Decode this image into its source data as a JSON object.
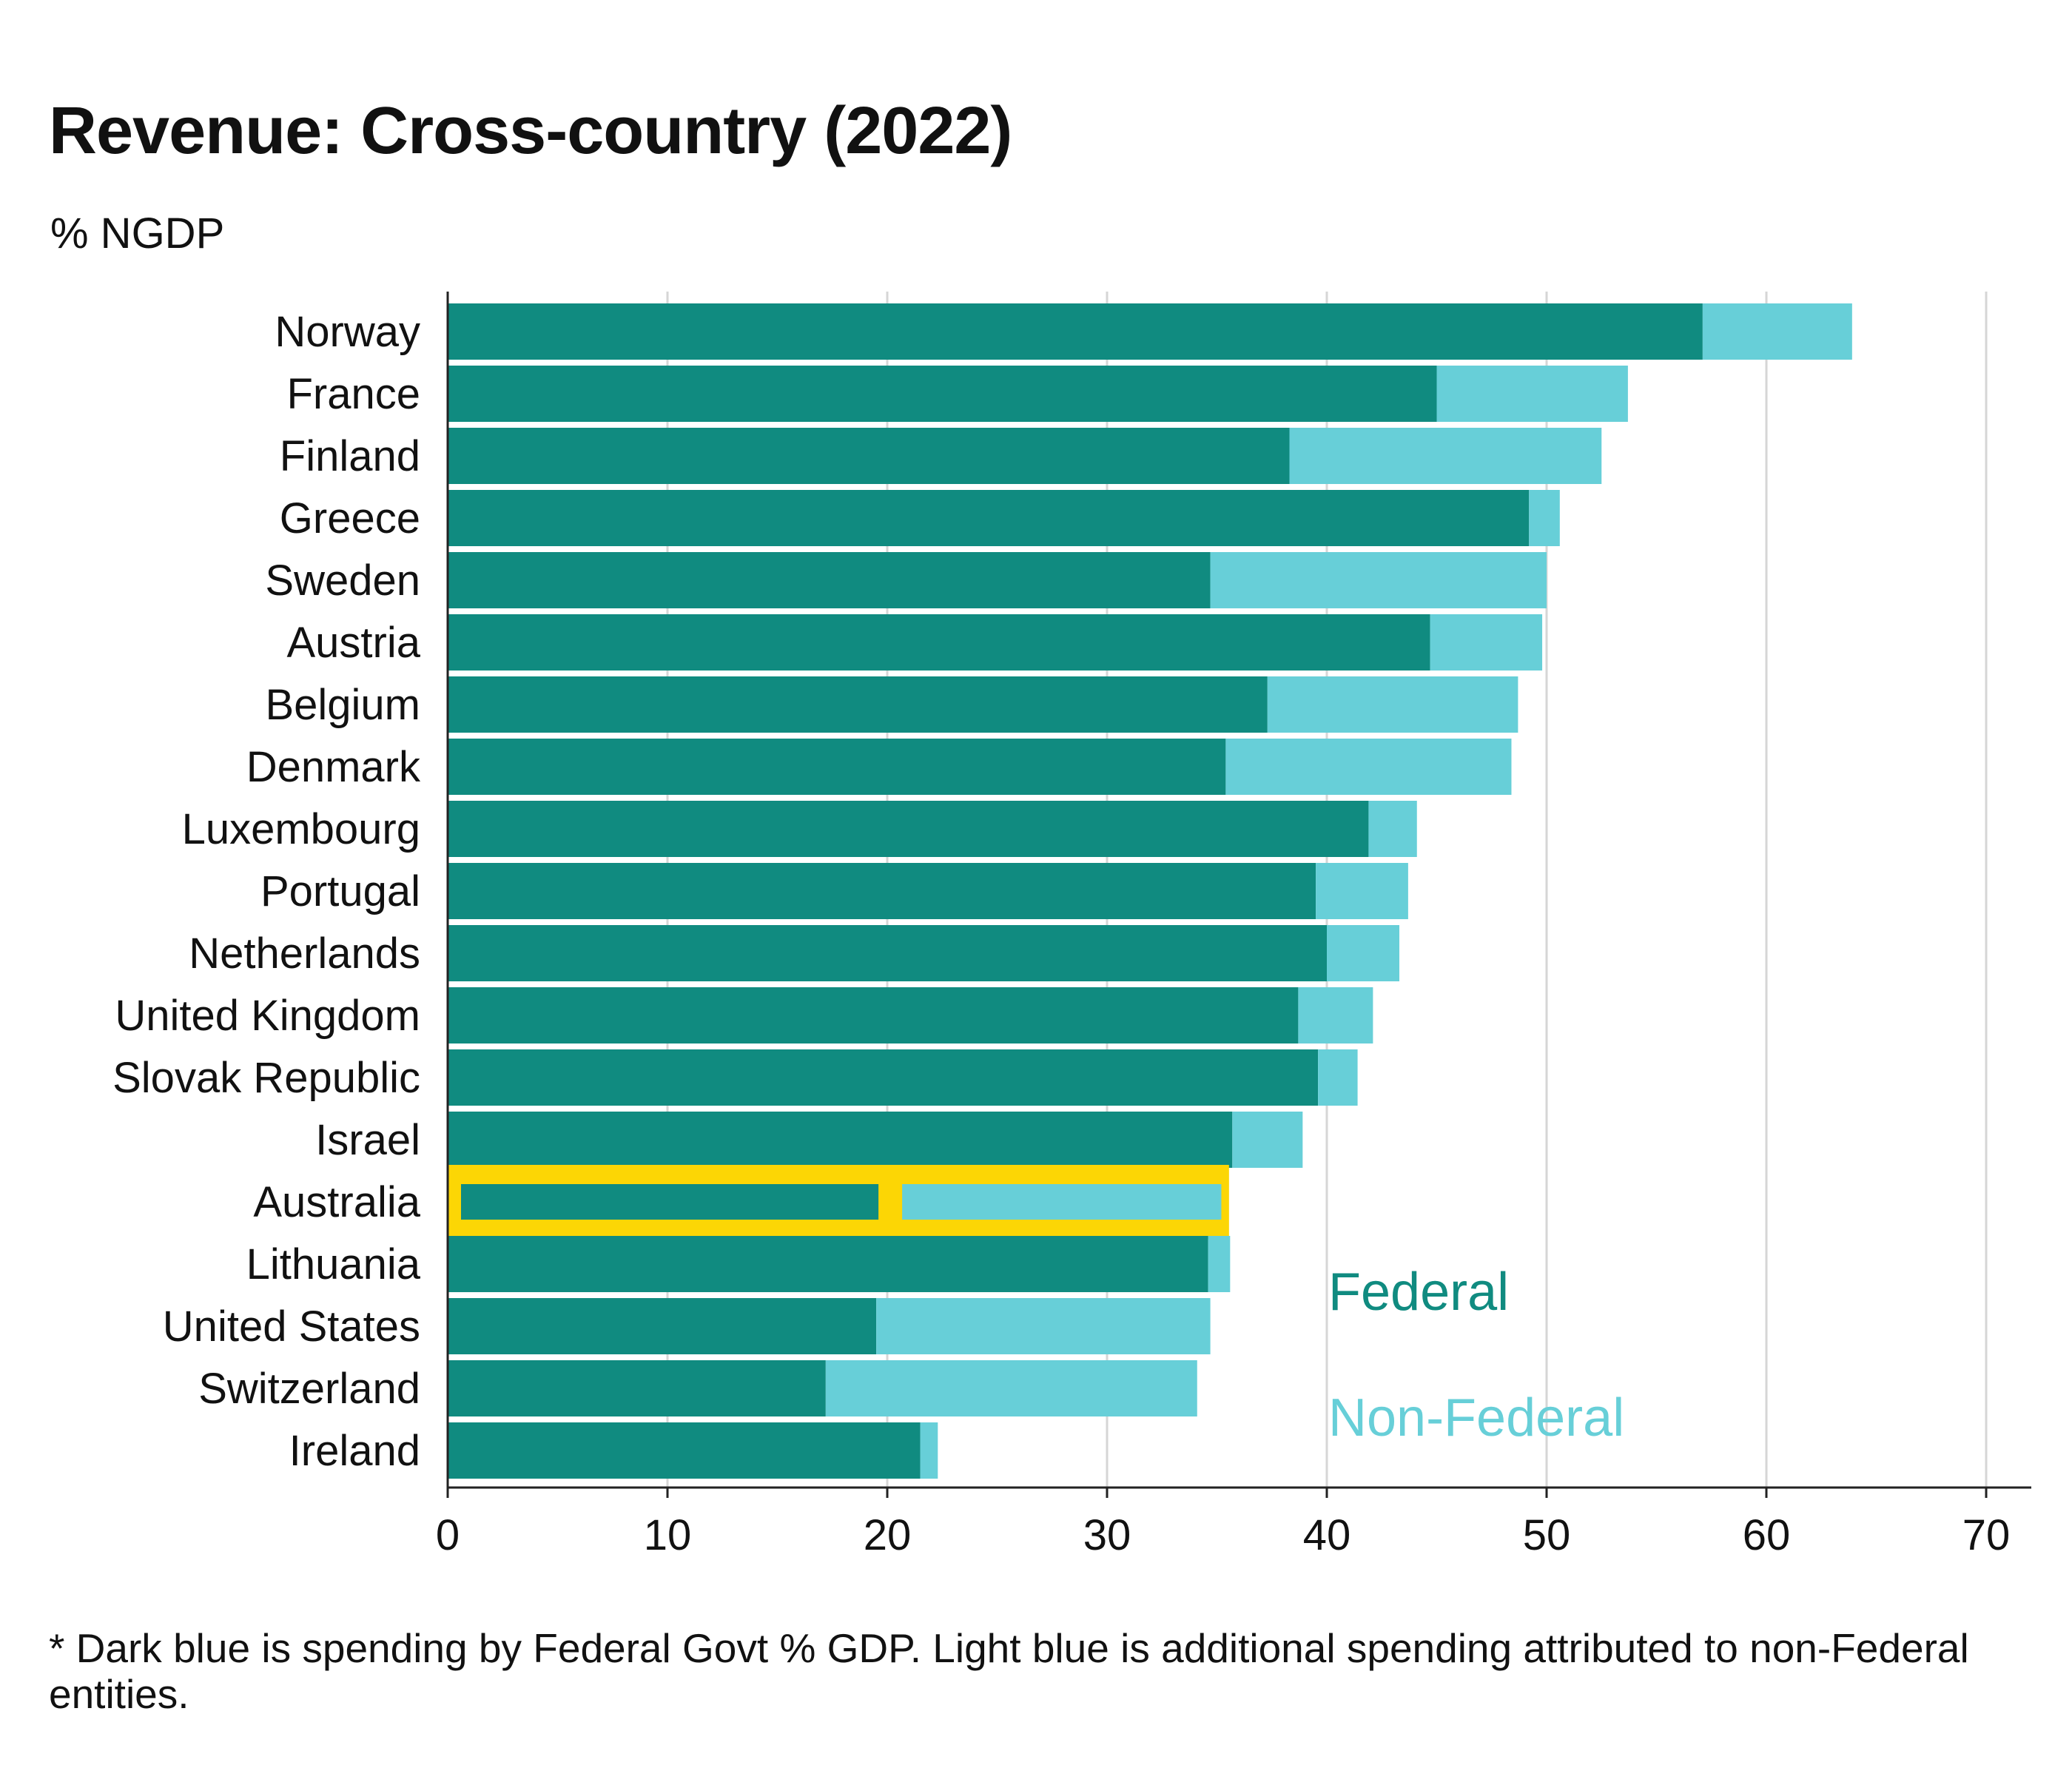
{
  "chart_data": {
    "type": "bar",
    "orientation": "horizontal",
    "stacked": true,
    "title": "Revenue: Cross-country (2022)",
    "subtitle": "% NGDP",
    "xlim": [
      0,
      70
    ],
    "x_ticks": [
      0,
      10,
      20,
      30,
      40,
      50,
      60,
      70
    ],
    "grid": "vertical",
    "categories": [
      "Norway",
      "France",
      "Finland",
      "Greece",
      "Sweden",
      "Austria",
      "Belgium",
      "Denmark",
      "Luxembourg",
      "Portugal",
      "Netherlands",
      "United Kingdom",
      "Slovak Republic",
      "Israel",
      "Australia",
      "Lithuania",
      "United States",
      "Switzerland",
      "Ireland"
    ],
    "series": [
      {
        "name": "Federal",
        "color": "#108b80",
        "values": [
          57.1,
          45.0,
          38.3,
          49.2,
          34.7,
          44.7,
          37.3,
          35.4,
          41.9,
          39.5,
          40.0,
          38.7,
          39.6,
          35.7,
          19.6,
          34.6,
          19.5,
          17.2,
          21.5
        ]
      },
      {
        "name": "Non-Federal",
        "color": "#67cfd8",
        "values": [
          6.8,
          8.7,
          14.2,
          1.4,
          15.3,
          5.1,
          11.4,
          13.0,
          2.2,
          4.2,
          3.3,
          3.4,
          1.8,
          3.2,
          15.6,
          1.0,
          15.2,
          16.9,
          0.8
        ]
      }
    ],
    "highlight": {
      "category": "Australia",
      "color": "#fcd605"
    },
    "legend_placement": "inside-right"
  },
  "footnote": "* Dark blue is spending by Federal Govt % GDP. Light blue is additional spending attributed to non-Federal entities."
}
